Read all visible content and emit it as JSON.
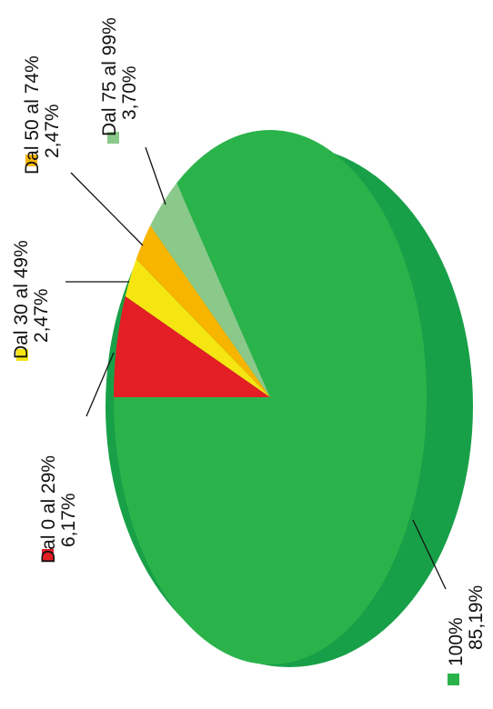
{
  "chart_data": {
    "type": "pie",
    "title": "",
    "slices": [
      {
        "name": "Dal 0 al 29%",
        "percent_label": "6,17%",
        "value": 6.17,
        "color": "#e31e24"
      },
      {
        "name": "Dal 30 al 49%",
        "percent_label": "2,47%",
        "value": 2.47,
        "color": "#f5e612"
      },
      {
        "name": "Dal 50 al 74%",
        "percent_label": "2,47%",
        "value": 2.47,
        "color": "#f7b500"
      },
      {
        "name": "Dal 75 al 99%",
        "percent_label": "3,70%",
        "value": 3.7,
        "color": "#8bc98b"
      },
      {
        "name": "100%",
        "percent_label": "85,19%",
        "value": 85.19,
        "color": "#2bb34b"
      }
    ],
    "style": "3d",
    "text_orientation": "rotated 90° counter-clockwise",
    "legend_markers": "colored squares beside labels"
  }
}
